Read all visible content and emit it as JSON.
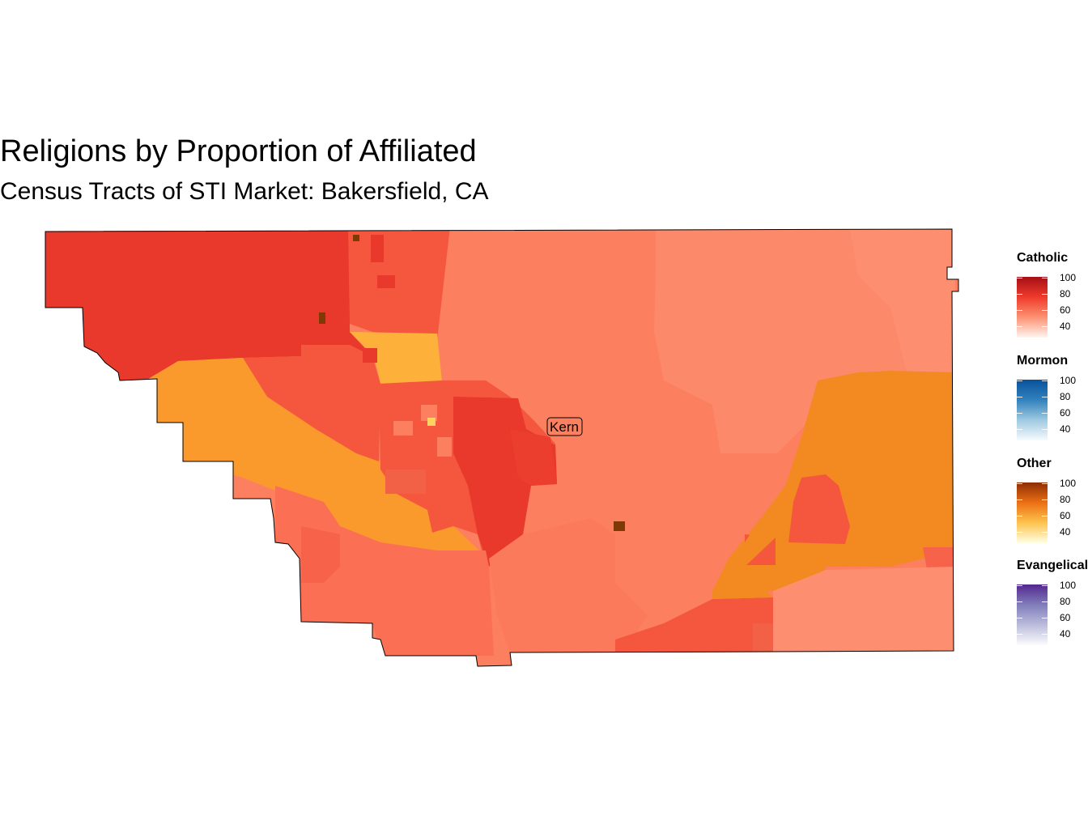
{
  "title": "Religions by Proportion of Affiliated",
  "subtitle": "Census Tracts of STI Market: Bakersfield, CA",
  "map": {
    "label": "Kern",
    "colors": {
      "catholic_dark": "#e8392c",
      "catholic_mid": "#f4573d",
      "catholic_light": "#fc7f60",
      "catholic_pale": "#fc8c6c",
      "catholic_min": "#fd9a7c",
      "other_mid": "#fb9a2c",
      "other_dark": "#f28a21",
      "other_light": "#fdc043",
      "other_max": "#7f3905"
    }
  },
  "legends": [
    {
      "title": "Catholic",
      "ticks": [
        "100",
        "80",
        "60",
        "40"
      ],
      "colors": [
        "#a50f15",
        "#ef3b2c",
        "#fc9272",
        "#fff5f0"
      ]
    },
    {
      "title": "Mormon",
      "ticks": [
        "100",
        "80",
        "60",
        "40"
      ],
      "colors": [
        "#08519c",
        "#3182bd",
        "#9ecae1",
        "#f7fbff"
      ]
    },
    {
      "title": "Other",
      "ticks": [
        "100",
        "80",
        "60",
        "40"
      ],
      "colors": [
        "#8c2d04",
        "#ec7014",
        "#fec44f",
        "#ffffe5"
      ]
    },
    {
      "title": "Evangelical",
      "ticks": [
        "100",
        "80",
        "60",
        "40"
      ],
      "colors": [
        "#54278f",
        "#807dba",
        "#bcbddc",
        "#fcfbfd"
      ]
    }
  ]
}
